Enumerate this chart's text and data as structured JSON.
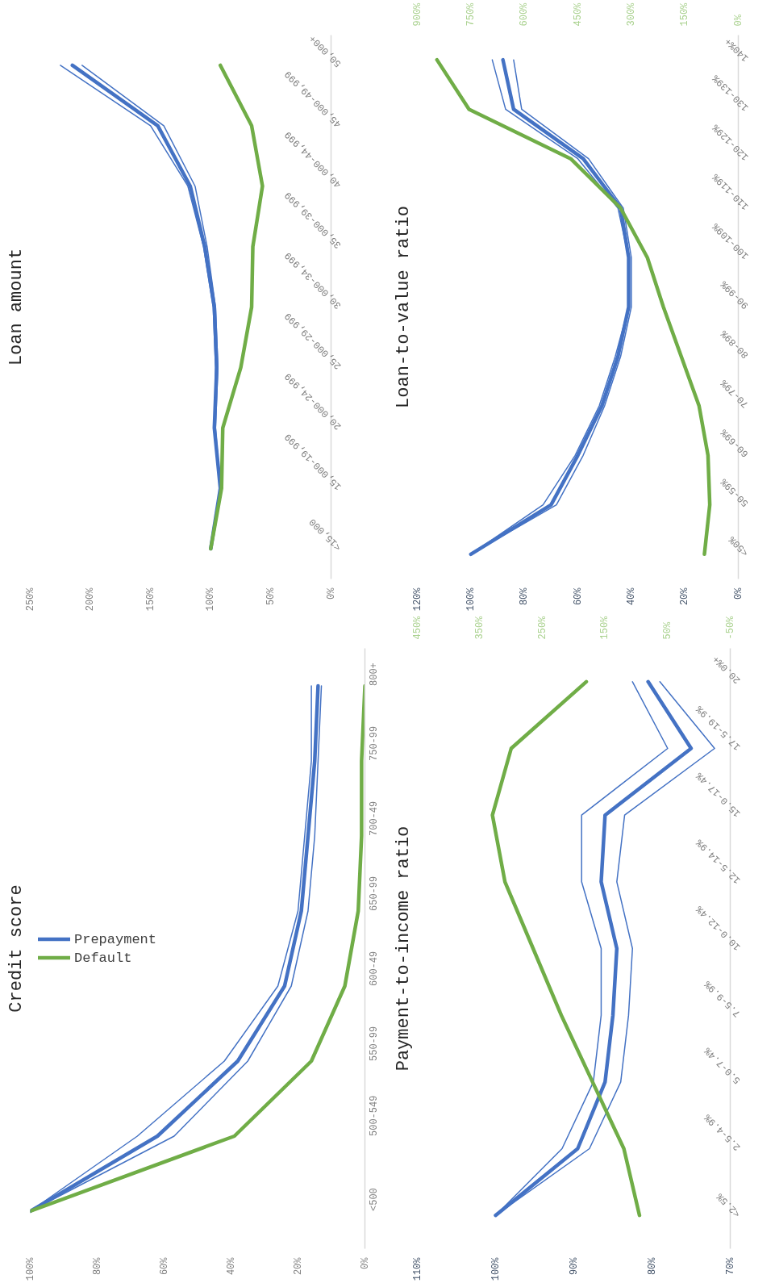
{
  "chart_data": [
    {
      "type": "line",
      "title": "Loan amount",
      "orientation": "horizontal",
      "categories": [
        "50,000+",
        "45,000-49,999",
        "40,000-44,999",
        "35,000-39,999",
        "30,000-34,999",
        "25,000-29,999",
        "20,000-24,999",
        "15,000-19,999",
        "<15,000"
      ],
      "xlim": [
        250,
        0
      ],
      "xticks": [
        {
          "value": 0,
          "label": "0%"
        },
        {
          "value": 50,
          "label": "50%"
        },
        {
          "value": 100,
          "label": "100%"
        },
        {
          "value": 150,
          "label": "150%"
        },
        {
          "value": 200,
          "label": "200%"
        },
        {
          "value": 250,
          "label": "250%"
        }
      ],
      "series": [
        {
          "color": "#4472c4",
          "values": [
            215,
            144,
            117,
            105,
            97,
            95,
            97,
            92,
            100
          ]
        },
        {
          "color": "#4472c4",
          "values": [
            225,
            150,
            119,
            106,
            98,
            96,
            97,
            92,
            100
          ]
        },
        {
          "color": "#4472c4",
          "values": [
            207,
            139,
            113,
            103,
            96,
            94,
            96,
            92,
            100
          ]
        },
        {
          "color": "#70ad47",
          "values": [
            92,
            66,
            57,
            65,
            66,
            75,
            90,
            91,
            100
          ]
        }
      ]
    },
    {
      "type": "line",
      "title": "Loan-to-value ratio",
      "orientation": "horizontal",
      "categories": [
        "140%+",
        "130-139%",
        "120-129%",
        "110-119%",
        "100-109%",
        "90-99%",
        "80-89%",
        "70-79%",
        "60-69%",
        "50-59%",
        "<50%"
      ],
      "xlim": [
        120,
        0
      ],
      "xticks": [
        {
          "value": 0,
          "label": "0%"
        },
        {
          "value": 20,
          "label": "20%"
        },
        {
          "value": 40,
          "label": "40%"
        },
        {
          "value": 60,
          "label": "60%"
        },
        {
          "value": 80,
          "label": "80%"
        },
        {
          "value": 100,
          "label": "100%"
        },
        {
          "value": 120,
          "label": "120%"
        }
      ],
      "x2lim": [
        900,
        0
      ],
      "x2ticks": [
        {
          "value": 0,
          "label": "0%"
        },
        {
          "value": 150,
          "label": "150%"
        },
        {
          "value": 300,
          "label": "300%"
        },
        {
          "value": 450,
          "label": "450%"
        },
        {
          "value": 600,
          "label": "600%"
        },
        {
          "value": 750,
          "label": "750%"
        },
        {
          "value": 900,
          "label": "900%"
        }
      ],
      "series": [
        {
          "color": "#4472c4",
          "values": [
            88,
            84,
            58,
            44,
            41,
            41,
            45,
            51,
            60,
            70,
            100
          ]
        },
        {
          "color": "#4472c4",
          "values": [
            92,
            87,
            60,
            45,
            41,
            41,
            46,
            52,
            61,
            73,
            100
          ]
        },
        {
          "color": "#4472c4",
          "values": [
            84,
            81,
            56,
            43,
            40,
            40,
            44,
            50,
            58,
            68,
            100
          ]
        },
        {
          "color": "#70ad47",
          "axis": "x2",
          "values": [
            845,
            755,
            470,
            330,
            255,
            210,
            160,
            110,
            85,
            80,
            95
          ]
        }
      ]
    },
    {
      "type": "line",
      "title": "Credit score",
      "orientation": "horizontal",
      "legend": "left",
      "categories": [
        "800+",
        "750-99",
        "700-49",
        "650-99",
        "600-49",
        "550-99",
        "500-549",
        "<500"
      ],
      "xlim": [
        100,
        0
      ],
      "xticks": [
        {
          "value": 0,
          "label": "0%"
        },
        {
          "value": 20,
          "label": "20%"
        },
        {
          "value": 40,
          "label": "40%"
        },
        {
          "value": 60,
          "label": "60%"
        },
        {
          "value": 80,
          "label": "80%"
        },
        {
          "value": 100,
          "label": "100%"
        }
      ],
      "series": [
        {
          "name": "Prepayment",
          "color": "#4472c4",
          "values": [
            14,
            15,
            17,
            19,
            24,
            38,
            62,
            100
          ]
        },
        {
          "color": "#4472c4",
          "values": [
            16,
            16,
            18,
            20,
            26,
            42,
            68,
            100
          ]
        },
        {
          "color": "#4472c4",
          "values": [
            13,
            14,
            15,
            17,
            22,
            35,
            57,
            100
          ]
        },
        {
          "name": "Default",
          "color": "#70ad47",
          "values": [
            0,
            1,
            1,
            2,
            6,
            16,
            39,
            100
          ]
        }
      ]
    },
    {
      "type": "line",
      "title": "Payment-to-income ratio",
      "orientation": "horizontal",
      "categories": [
        "20.0%+",
        "17.5-19.9%",
        "15.0-17.4%",
        "12.5-14.9%",
        "10.0-12.4%",
        "7.5-9.9%",
        "5.0-7.4%",
        "2.5-4.9%",
        "<2.5%"
      ],
      "xlim": [
        110,
        70
      ],
      "xticks": [
        {
          "value": 70,
          "label": "70%"
        },
        {
          "value": 80,
          "label": "80%"
        },
        {
          "value": 90,
          "label": "90%"
        },
        {
          "value": 100,
          "label": "100%"
        },
        {
          "value": 110,
          "label": "110%"
        }
      ],
      "x2lim": [
        450,
        -50
      ],
      "x2ticks": [
        {
          "value": -50,
          "label": "-50%"
        },
        {
          "value": 50,
          "label": "50%"
        },
        {
          "value": 150,
          "label": "150%"
        },
        {
          "value": 250,
          "label": "250%"
        },
        {
          "value": 350,
          "label": "350%"
        },
        {
          "value": 450,
          "label": "450%"
        }
      ],
      "series": [
        {
          "color": "#4472c4",
          "values": [
            80.5,
            75,
            86,
            86.5,
            84.5,
            85,
            86,
            89.5,
            100
          ]
        },
        {
          "color": "#4472c4",
          "values": [
            82.5,
            78,
            89,
            89,
            86.5,
            86.5,
            87.5,
            91.5,
            100
          ]
        },
        {
          "color": "#4472c4",
          "values": [
            79,
            72,
            83.5,
            84.5,
            82.5,
            83,
            84,
            88,
            100
          ]
        },
        {
          "color": "#70ad47",
          "axis": "x2",
          "values": [
            180,
            300,
            330,
            310,
            265,
            220,
            170,
            120,
            95
          ]
        }
      ]
    }
  ]
}
